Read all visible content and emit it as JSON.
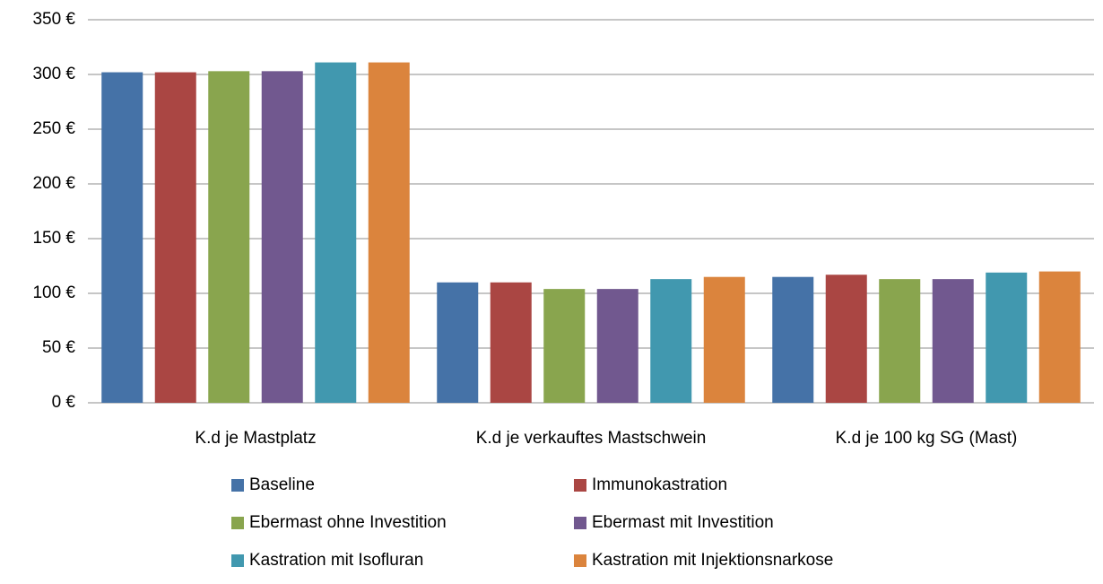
{
  "chart_data": {
    "type": "bar",
    "categories": [
      "K.d je Mastplatz",
      "K.d je verkauftes Mastschwein",
      "K.d je 100 kg SG (Mast)"
    ],
    "series": [
      {
        "name": "Baseline",
        "color": "#4572a7",
        "values": [
          302,
          110,
          115
        ]
      },
      {
        "name": "Immunokastration",
        "color": "#aa4643",
        "values": [
          302,
          110,
          117
        ]
      },
      {
        "name": "Ebermast ohne Investition",
        "color": "#89a54e",
        "values": [
          303,
          104,
          113
        ]
      },
      {
        "name": "Ebermast mit Investition",
        "color": "#71588f",
        "values": [
          303,
          104,
          113
        ]
      },
      {
        "name": "Kastration mit Isofluran",
        "color": "#4198af",
        "values": [
          311,
          113,
          119
        ]
      },
      {
        "name": "Kastration mit Injektionsnarkose",
        "color": "#db843d",
        "values": [
          311,
          115,
          120
        ]
      }
    ],
    "ylim": [
      0,
      350
    ],
    "yticks": [
      {
        "value": 0,
        "label": "0 €"
      },
      {
        "value": 50,
        "label": "50 €"
      },
      {
        "value": 100,
        "label": "100 €"
      },
      {
        "value": 150,
        "label": "150 €"
      },
      {
        "value": 200,
        "label": "200 €"
      },
      {
        "value": 250,
        "label": "250 €"
      },
      {
        "value": 300,
        "label": "300 €"
      },
      {
        "value": 350,
        "label": "350 €"
      }
    ],
    "grid": true,
    "legend": "bottom"
  }
}
